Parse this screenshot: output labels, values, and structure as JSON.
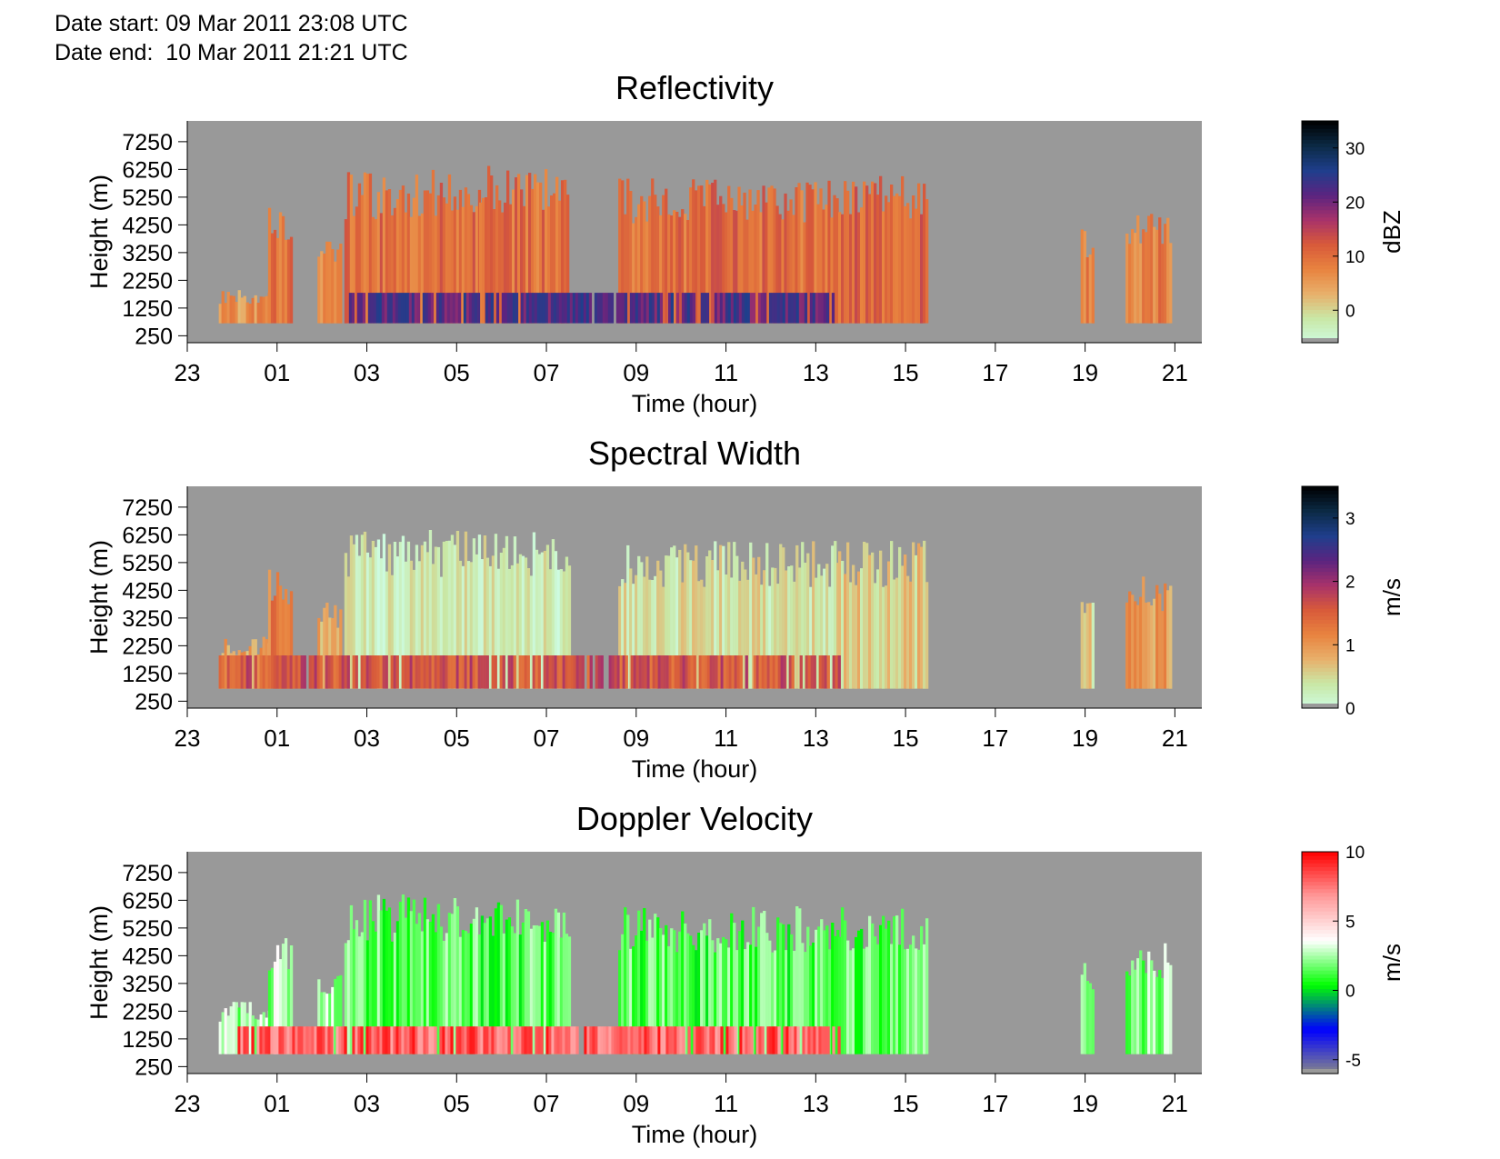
{
  "header": {
    "date_start": "Date start: 09 Mar 2011 23:08 UTC",
    "date_end": "Date end:  10 Mar 2011 21:21 UTC"
  },
  "colors": {
    "no_data": "#999999",
    "reflectivity_scale": [
      "#cdfbe0",
      "#c9e8a6",
      "#e8b06b",
      "#e8833f",
      "#d85a3a",
      "#a8326a",
      "#5a2480",
      "#1f3f8c",
      "#0b2a45",
      "#000000"
    ],
    "spectral_width_scale": [
      "#cdfbe0",
      "#c9e8a6",
      "#e8b06b",
      "#e8833f",
      "#d85a3a",
      "#a8326a",
      "#5a2480",
      "#1f3f8c",
      "#0b2a45",
      "#000000"
    ],
    "doppler_scale": [
      "#888888",
      "#0000ff",
      "#00ff00",
      "#ffffff",
      "#ff9a9a",
      "#ff0000"
    ]
  },
  "chart_data": [
    {
      "type": "heatmap",
      "title": "Reflectivity",
      "xlabel": "Time (hour)",
      "ylabel": "Height (m)",
      "x_ticks": [
        "23",
        "01",
        "03",
        "05",
        "07",
        "09",
        "11",
        "13",
        "15",
        "17",
        "19",
        "21"
      ],
      "y_ticks": [
        "250",
        "1250",
        "2250",
        "3250",
        "4250",
        "5250",
        "6250",
        "7250"
      ],
      "colorbar": {
        "label": "dBZ",
        "ticks": [
          "0",
          "10",
          "20",
          "30"
        ],
        "range": [
          -6,
          35
        ]
      },
      "segments": [
        {
          "start": 23.7,
          "end": 24.8,
          "top": 1800,
          "value": 6
        },
        {
          "start": 24.8,
          "end": 25.3,
          "top": 4700,
          "value": 10
        },
        {
          "start": 25.9,
          "end": 26.4,
          "top": 3600,
          "value": 8
        },
        {
          "start": 26.5,
          "end": 28.2,
          "top": 5700,
          "value": 10
        },
        {
          "start": 28.2,
          "end": 29.5,
          "top": 5800,
          "value": 10
        },
        {
          "start": 29.5,
          "end": 31.5,
          "top": 6000,
          "value": 10
        },
        {
          "start": 32.6,
          "end": 35.2,
          "top": 5500,
          "value": 10
        },
        {
          "start": 35.2,
          "end": 37.5,
          "top": 5500,
          "value": 10
        },
        {
          "start": 37.5,
          "end": 39.5,
          "top": 5600,
          "value": 11
        },
        {
          "start": 18.9,
          "end": 19.2,
          "top": 3800,
          "value": 7,
          "day": 2
        },
        {
          "start": 19.9,
          "end": 20.9,
          "top": 4400,
          "value": 8,
          "day": 2
        }
      ],
      "low_band": {
        "start": 26.6,
        "end": 37.5,
        "bottom": 700,
        "top": 1800,
        "value": 22
      }
    },
    {
      "type": "heatmap",
      "title": "Spectral Width",
      "xlabel": "Time (hour)",
      "ylabel": "Height (m)",
      "x_ticks": [
        "23",
        "01",
        "03",
        "05",
        "07",
        "09",
        "11",
        "13",
        "15",
        "17",
        "19",
        "21"
      ],
      "y_ticks": [
        "250",
        "1250",
        "2250",
        "3250",
        "4250",
        "5250",
        "6250",
        "7250"
      ],
      "colorbar": {
        "label": "m/s",
        "ticks": [
          "0",
          "1",
          "2",
          "3"
        ],
        "range": [
          0,
          3.5
        ]
      },
      "segments": [
        {
          "start": 23.7,
          "end": 24.8,
          "top": 2400,
          "value": 0.9
        },
        {
          "start": 24.8,
          "end": 25.3,
          "top": 4700,
          "value": 1.2
        },
        {
          "start": 25.9,
          "end": 26.4,
          "top": 3600,
          "value": 0.8
        },
        {
          "start": 26.5,
          "end": 31.5,
          "top": 6000,
          "value": 0.3
        },
        {
          "start": 32.6,
          "end": 37.5,
          "top": 5600,
          "value": 0.4
        },
        {
          "start": 37.5,
          "end": 39.5,
          "top": 5600,
          "value": 0.6
        },
        {
          "start": 18.9,
          "end": 19.2,
          "top": 3800,
          "value": 0.5,
          "day": 2
        },
        {
          "start": 19.9,
          "end": 20.9,
          "top": 4400,
          "value": 1.0,
          "day": 2
        }
      ],
      "low_band": {
        "start": 23.7,
        "end": 37.5,
        "bottom": 700,
        "top": 1900,
        "value": 1.6
      }
    },
    {
      "type": "heatmap",
      "title": "Doppler Velocity",
      "xlabel": "Time (hour)",
      "ylabel": "Height (m)",
      "x_ticks": [
        "23",
        "01",
        "03",
        "05",
        "07",
        "09",
        "11",
        "13",
        "15",
        "17",
        "19",
        "21"
      ],
      "y_ticks": [
        "250",
        "1250",
        "2250",
        "3250",
        "4250",
        "5250",
        "6250",
        "7250"
      ],
      "colorbar": {
        "label": "m/s",
        "ticks": [
          "-5",
          "0",
          "5",
          "10"
        ],
        "range": [
          -6,
          10
        ]
      },
      "segments": [
        {
          "start": 23.7,
          "end": 24.8,
          "top": 2400,
          "value": 2.5
        },
        {
          "start": 24.8,
          "end": 25.3,
          "top": 4700,
          "value": 2.5
        },
        {
          "start": 25.9,
          "end": 26.4,
          "top": 3600,
          "value": 2.5
        },
        {
          "start": 26.5,
          "end": 31.5,
          "top": 6000,
          "value": 1.5
        },
        {
          "start": 32.6,
          "end": 37.5,
          "top": 5600,
          "value": 1.5
        },
        {
          "start": 37.5,
          "end": 39.5,
          "top": 5600,
          "value": 1.5
        },
        {
          "start": 18.9,
          "end": 19.2,
          "top": 3800,
          "value": 1.5,
          "day": 2
        },
        {
          "start": 19.9,
          "end": 20.9,
          "top": 4400,
          "value": 2.0,
          "day": 2
        }
      ],
      "low_band": {
        "start": 24.0,
        "end": 37.5,
        "bottom": 700,
        "top": 1700,
        "value": 8
      }
    }
  ]
}
